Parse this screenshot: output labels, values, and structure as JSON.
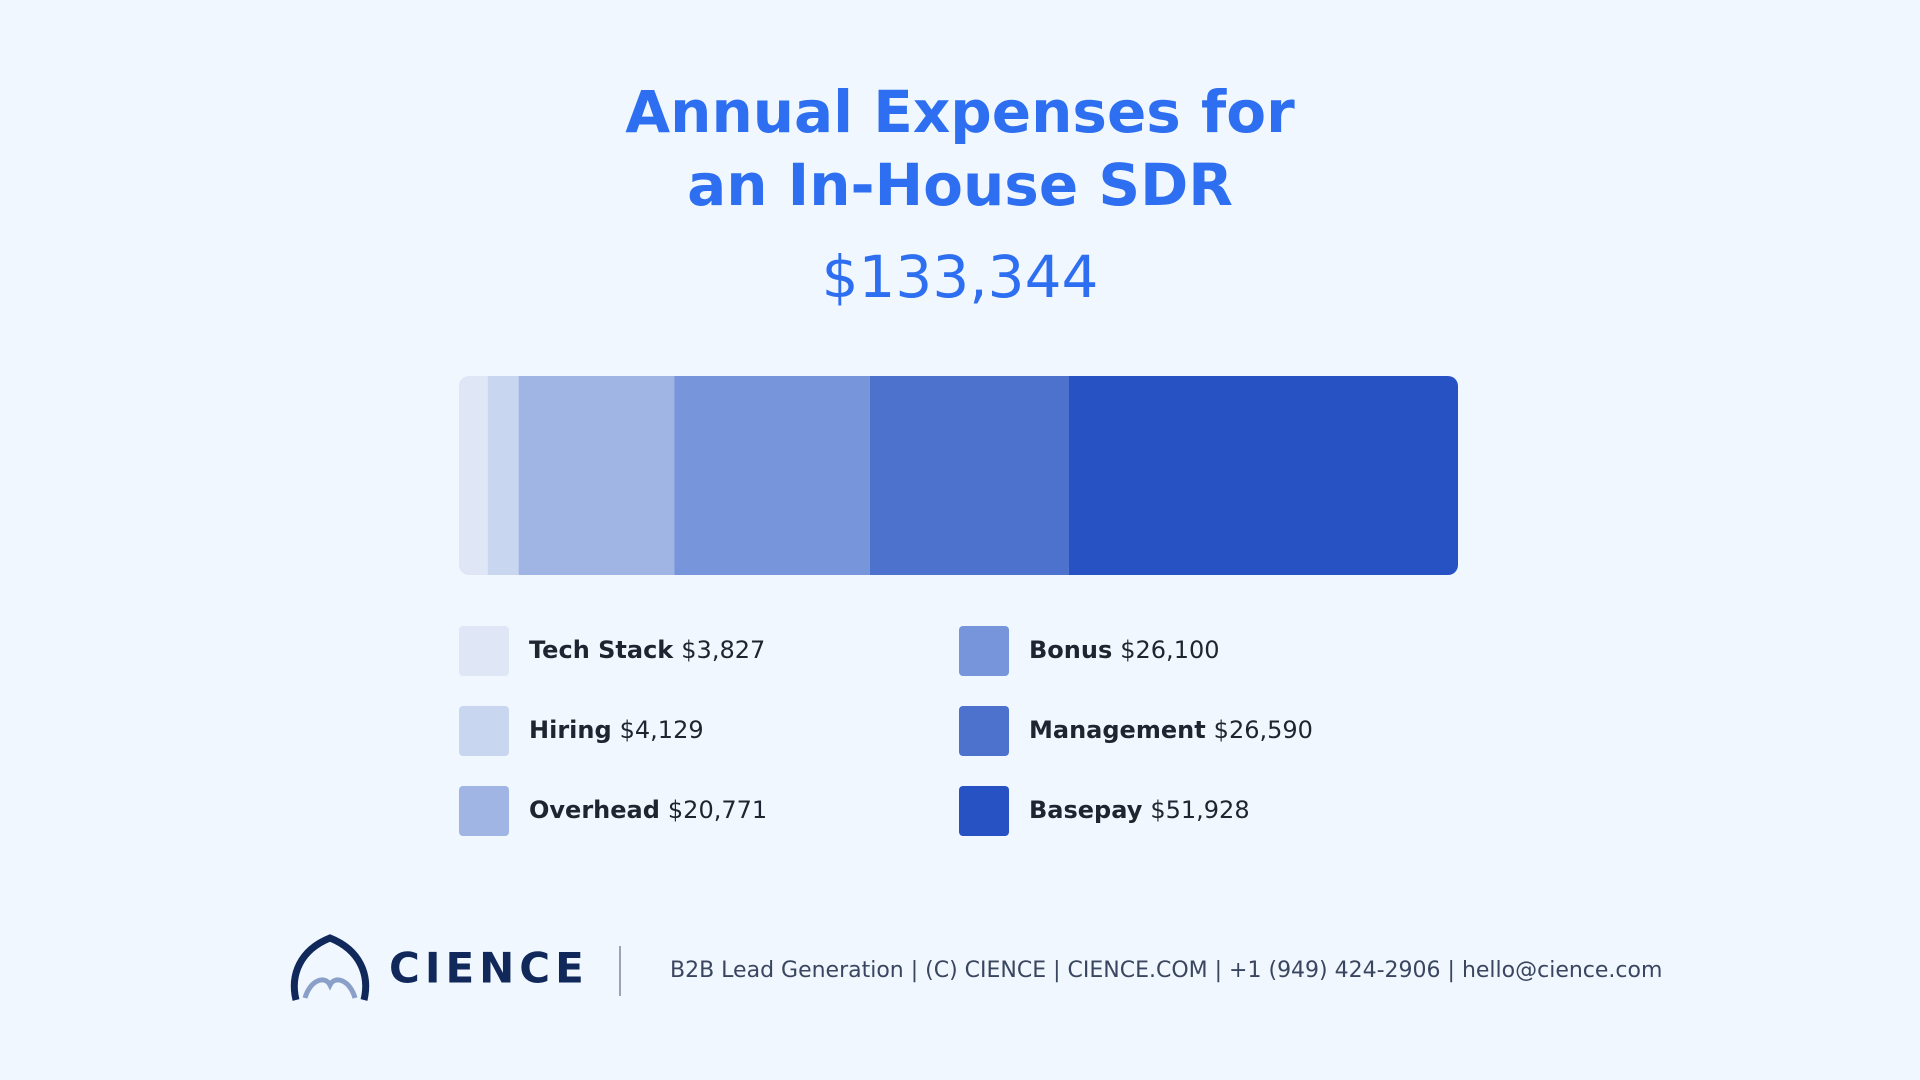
{
  "chart_data": {
    "type": "stacked-bar",
    "title": [
      "Annual Expenses for",
      "an In-House SDR"
    ],
    "subtitle": "$133,344",
    "series": [
      {
        "name": "Tech Stack",
        "color": "#dfe7f6",
        "values": [
          3827
        ],
        "value_labels": [
          "$3,827"
        ]
      },
      {
        "name": "Hiring",
        "color": "#c8d6f0",
        "values": [
          4129
        ],
        "value_labels": [
          "$4,129"
        ]
      },
      {
        "name": "Overhead",
        "color": "#a0b5e4",
        "values": [
          20771
        ],
        "value_labels": [
          "$20,771"
        ]
      },
      {
        "name": "Bonus",
        "color": "#7795da",
        "values": [
          26100
        ],
        "value_labels": [
          "$26,100"
        ]
      },
      {
        "name": "Management",
        "color": "#4d72cd",
        "values": [
          26590
        ],
        "value_labels": [
          "$26,590"
        ]
      },
      {
        "name": "Basepay",
        "color": "#2752c4",
        "values": [
          51928
        ],
        "value_labels": [
          "$51,928"
        ]
      }
    ]
  },
  "footer": {
    "brand": "CIENCE",
    "text": "B2B Lead Generation | (C) CIENCE | CIENCE.COM | +1 (949) 424-2906 | hello@cience.com"
  }
}
